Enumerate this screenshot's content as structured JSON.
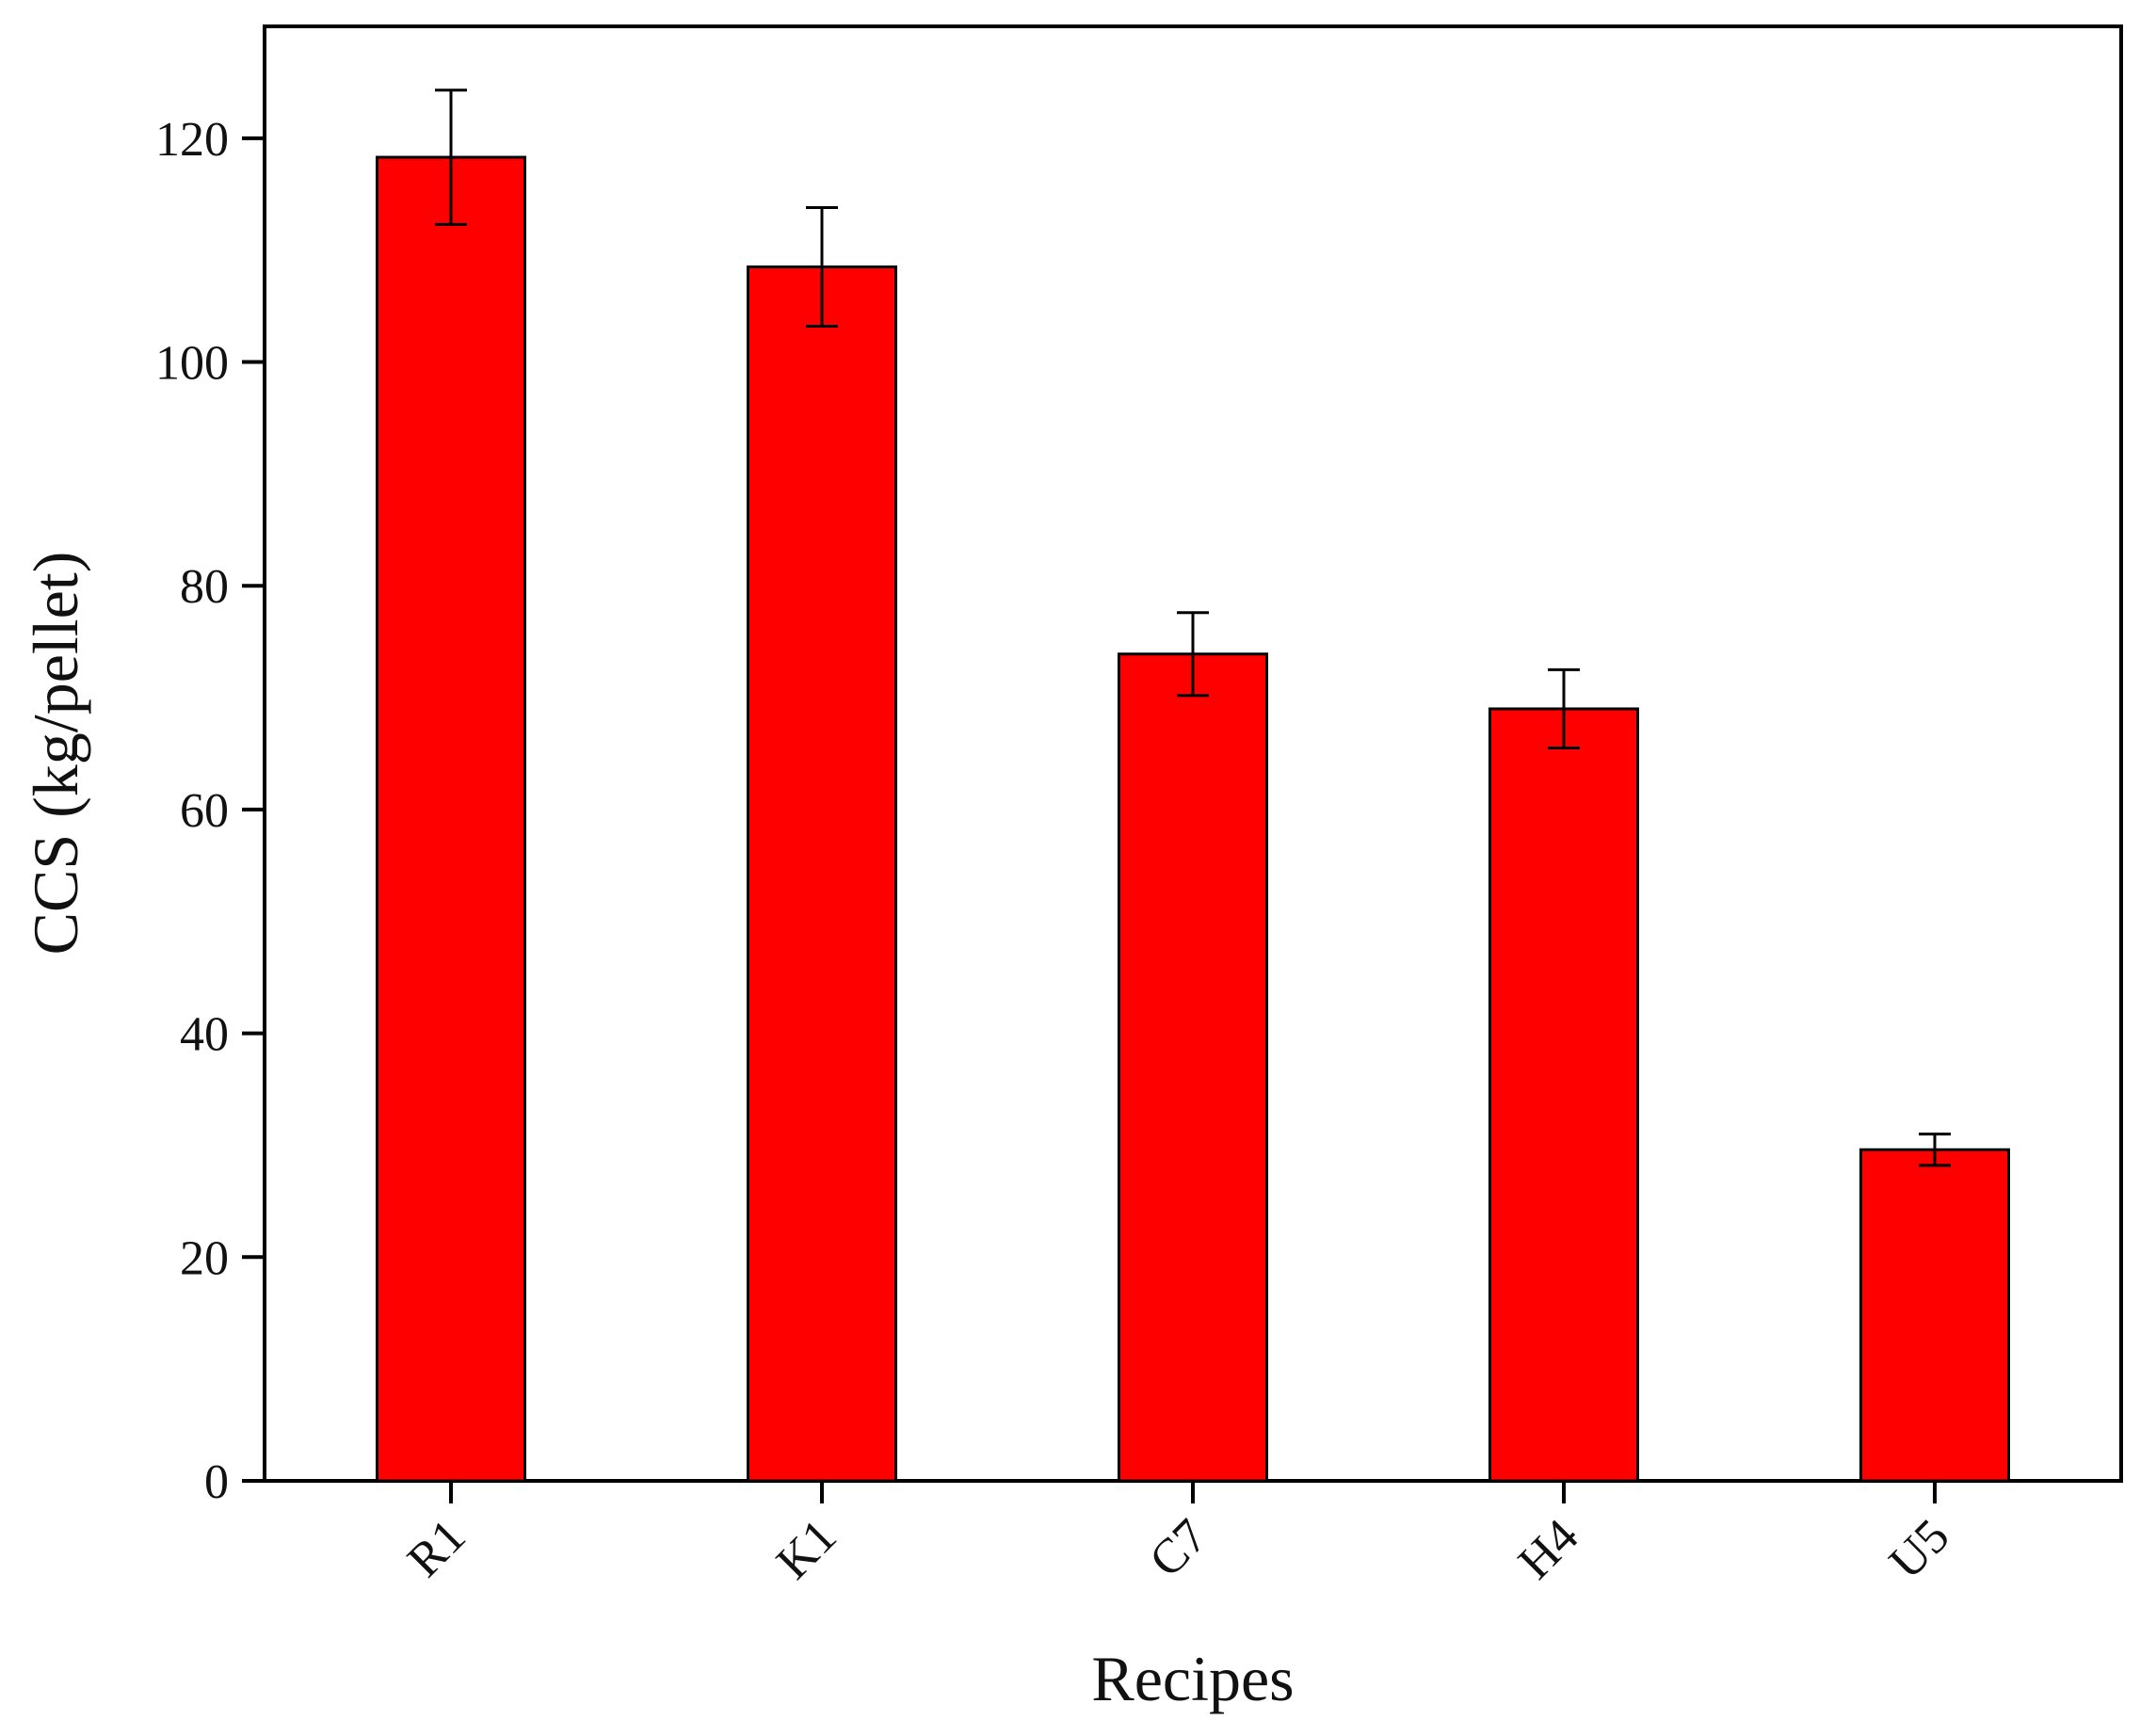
{
  "chart_data": {
    "type": "bar",
    "xlabel": "Recipes",
    "ylabel": "CCS (kg/pellet)",
    "categories": [
      "R1",
      "K1",
      "C7",
      "H4",
      "U5"
    ],
    "values": [
      118.3,
      108.5,
      73.9,
      69.0,
      29.6
    ],
    "errors": [
      6.0,
      5.3,
      3.7,
      3.5,
      1.4
    ],
    "ylim": [
      0,
      130
    ],
    "yticks": [
      "0",
      "20",
      "40",
      "60",
      "80",
      "100",
      "120"
    ],
    "bar_color": "#ff0000",
    "grid": false,
    "legend": "none"
  }
}
